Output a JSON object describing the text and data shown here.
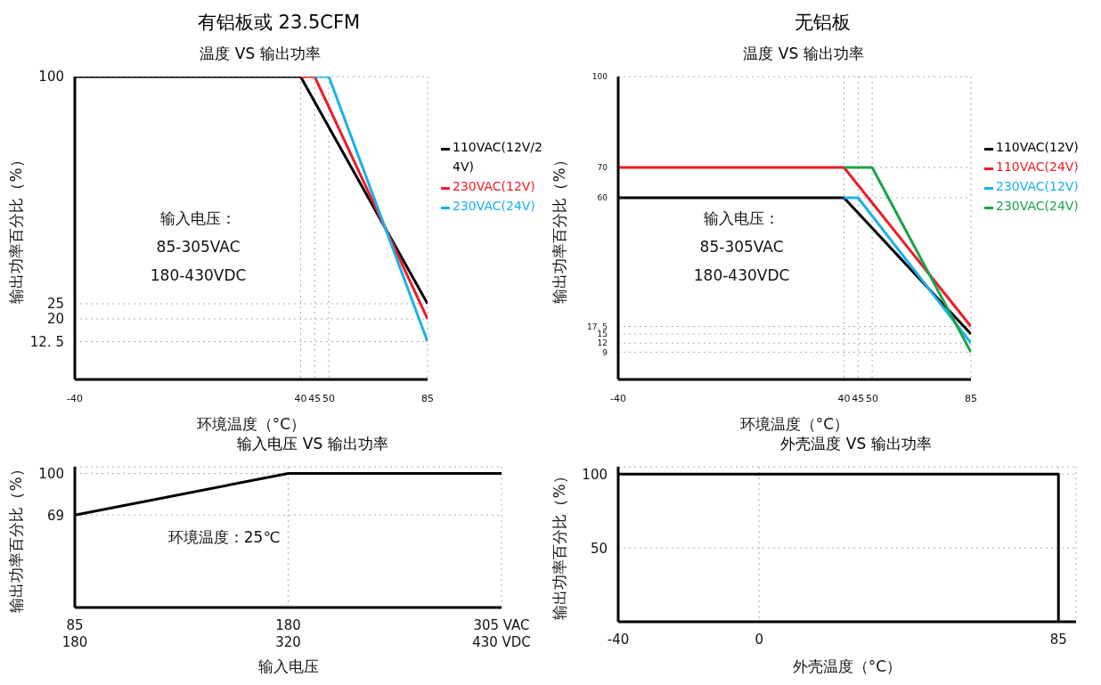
{
  "chart_data": [
    {
      "type": "line",
      "title": "有铝板或 23.5CFM",
      "subtitle": "温度 VS 输出功率",
      "xlabel": "环境温度（°C）",
      "ylabel": "输出功率百分比（%）",
      "annotations": [
        "输入电压：",
        "85-305VAC",
        "180-430VDC"
      ],
      "series": [
        {
          "name": "110VAC(12V/24V)",
          "color": "#000000",
          "x": [
            -40,
            40,
            85
          ],
          "values": [
            100,
            100,
            25
          ]
        },
        {
          "name": "230VAC(12V)",
          "color": "#ee1c25",
          "x": [
            40,
            45,
            85
          ],
          "values": [
            100,
            100,
            20
          ]
        },
        {
          "name": "230VAC(24V)",
          "color": "#1ab0ec",
          "x": [
            45,
            50,
            85
          ],
          "values": [
            100,
            100,
            12.5
          ]
        }
      ],
      "xlim": [
        -40,
        85
      ],
      "xticks": [
        -40,
        40,
        45,
        50,
        85
      ],
      "ylim": [
        0,
        100
      ],
      "yticks": [
        {
          "value": 12.5,
          "label": "12. 5"
        },
        20,
        25,
        100
      ],
      "grid": true,
      "legend": "right"
    },
    {
      "type": "line",
      "title": "无铝板",
      "subtitle": "温度 VS 输出功率",
      "xlabel": "环境温度（°C）",
      "ylabel": "输出功率百分比（%）",
      "annotations": [
        "输入电压：",
        "85-305VAC",
        "180-430VDC"
      ],
      "series": [
        {
          "name": "110VAC(12V)",
          "color": "#000000",
          "x": [
            -40,
            40,
            85
          ],
          "values": [
            60,
            60,
            15
          ]
        },
        {
          "name": "110VAC(24V)",
          "color": "#ee1c25",
          "x": [
            -40,
            40,
            85
          ],
          "values": [
            70,
            70,
            17.5
          ]
        },
        {
          "name": "230VAC(12V)",
          "color": "#1ab0ec",
          "x": [
            40,
            45,
            85
          ],
          "values": [
            60,
            60,
            12
          ]
        },
        {
          "name": "230VAC(24V)",
          "color": "#1aa34a",
          "x": [
            40,
            50,
            85
          ],
          "values": [
            70,
            70,
            9
          ]
        }
      ],
      "xlim": [
        -40,
        85
      ],
      "xticks": [
        -40,
        40,
        45,
        50,
        85
      ],
      "ylim": [
        0,
        100
      ],
      "yticks": [
        9,
        12,
        15,
        {
          "value": 17.5,
          "label": "17. 5"
        },
        60,
        70,
        100
      ],
      "grid": true,
      "legend": "right"
    },
    {
      "type": "line",
      "subtitle": "输入电压 VS 输出功率",
      "xlabel": "输入电压",
      "ylabel": "输出功率百分比（%）",
      "annotations": [
        "环境温度：25℃"
      ],
      "categories": [
        "85\n180",
        "180\n320",
        "305 VAC\n430 VDC"
      ],
      "series": [
        {
          "color": "#000000",
          "values": [
            69,
            100,
            100
          ]
        }
      ],
      "ylim": [
        0,
        105
      ],
      "yticks": [
        69,
        100
      ],
      "grid": true
    },
    {
      "type": "line",
      "subtitle": "外壳温度 VS 输出功率",
      "xlabel": "外壳温度（°C）",
      "ylabel": "输出功率百分比（%）",
      "series": [
        {
          "color": "#000000",
          "x": [
            -40,
            85,
            85
          ],
          "values": [
            100,
            100,
            0
          ]
        }
      ],
      "xlim": [
        -40,
        90
      ],
      "xticks": [
        -40,
        0,
        85
      ],
      "ylim": [
        0,
        105
      ],
      "yticks": [
        50,
        100
      ],
      "grid": true
    }
  ]
}
